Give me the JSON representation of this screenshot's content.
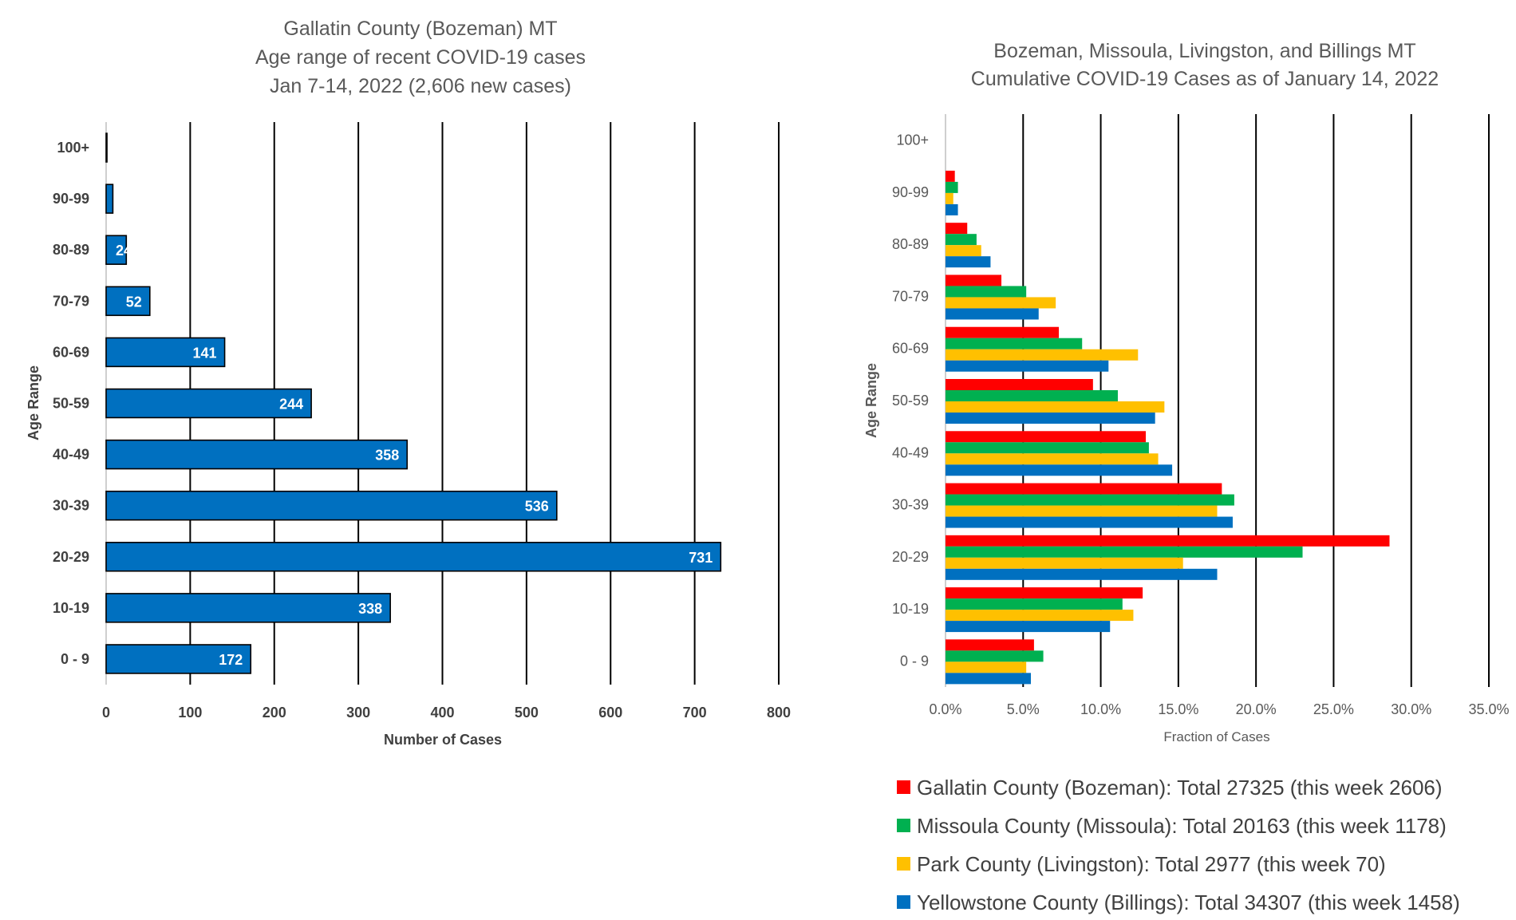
{
  "chart_data": [
    {
      "type": "bar",
      "orientation": "horizontal",
      "title_lines": [
        "Gallatin County (Bozeman) MT",
        "Age range of recent COVID-19 cases",
        "Jan 7-14, 2022 (2,606 new cases)"
      ],
      "xlabel": "Number of Cases",
      "ylabel": "Age Range",
      "categories": [
        "100+",
        "90-99",
        "80-89",
        "70-79",
        "60-69",
        "50-59",
        "40-49",
        "30-39",
        "20-29",
        "10-19",
        "0 - 9"
      ],
      "values": [
        1,
        8,
        24,
        52,
        141,
        244,
        358,
        536,
        731,
        338,
        172
      ],
      "data_labels": [
        "",
        "",
        "24",
        "52",
        "141",
        "244",
        "358",
        "536",
        "731",
        "338",
        "172"
      ],
      "xlim": [
        0,
        800
      ],
      "x_ticks": [
        "0",
        "100",
        "200",
        "300",
        "400",
        "500",
        "600",
        "700",
        "800"
      ],
      "grid": "vertical",
      "bar_color": "#0070c0"
    },
    {
      "type": "bar",
      "orientation": "horizontal",
      "title_lines": [
        "Bozeman, Missoula, Livingston, and Billings MT",
        "Cumulative COVID-19 Cases as of January 14, 2022"
      ],
      "xlabel": "Fraction of Cases",
      "ylabel": "Age Range",
      "categories": [
        "100+",
        "90-99",
        "80-89",
        "70-79",
        "60-69",
        "50-59",
        "40-49",
        "30-39",
        "20-29",
        "10-19",
        "0 - 9"
      ],
      "xlim": [
        0,
        35
      ],
      "x_ticks": [
        "0.0%",
        "5.0%",
        "10.0%",
        "15.0%",
        "20.0%",
        "25.0%",
        "30.0%",
        "35.0%"
      ],
      "grid": "vertical",
      "legend_position": "bottom",
      "series": [
        {
          "name": "Gallatin County (Bozeman): Total 27325 (this week 2606)",
          "color": "#ff0000",
          "values": [
            0.0,
            0.6,
            1.4,
            3.6,
            7.3,
            9.5,
            12.9,
            17.8,
            28.6,
            12.7,
            5.7
          ]
        },
        {
          "name": "Missoula County (Missoula): Total 20163 (this week 1178)",
          "color": "#00b050",
          "values": [
            0.0,
            0.8,
            2.0,
            5.2,
            8.8,
            11.1,
            13.1,
            18.6,
            23.0,
            11.4,
            6.3
          ]
        },
        {
          "name": "Park County (Livingston): Total 2977 (this week 70)",
          "color": "#ffc000",
          "values": [
            0.0,
            0.5,
            2.3,
            7.1,
            12.4,
            14.1,
            13.7,
            17.5,
            15.3,
            12.1,
            5.2
          ]
        },
        {
          "name": "Yellowstone County (Billings): Total 34307 (this week 1458)",
          "color": "#0070c0",
          "values": [
            0.0,
            0.8,
            2.9,
            6.0,
            10.5,
            13.5,
            14.6,
            18.5,
            17.5,
            10.6,
            5.5
          ]
        }
      ]
    }
  ]
}
